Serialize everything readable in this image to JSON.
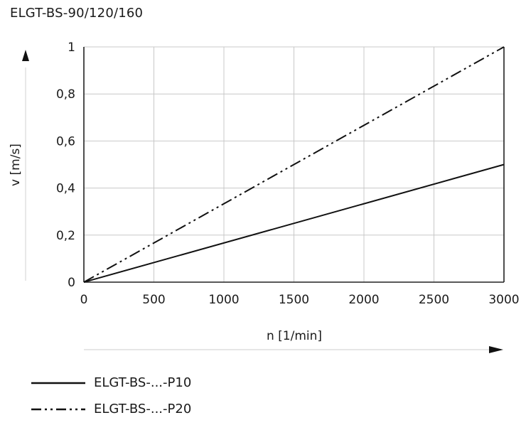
{
  "chart_data": {
    "type": "line",
    "title": "ELGT-BS-90/120/160",
    "xlabel": "n [1/min]",
    "ylabel": "v [m/s]",
    "xlim": [
      0,
      3000
    ],
    "ylim": [
      0,
      1
    ],
    "x_ticks": [
      "0",
      "500",
      "1000",
      "1500",
      "2000",
      "2500",
      "3000"
    ],
    "y_ticks": [
      "0",
      "0,2",
      "0,4",
      "0,6",
      "0,8",
      "1"
    ],
    "grid": true,
    "series": [
      {
        "name": "ELGT-BS-...-P10",
        "style": "solid",
        "x": [
          0,
          3000
        ],
        "y": [
          0,
          0.5
        ]
      },
      {
        "name": "ELGT-BS-...-P20",
        "style": "dashdotdot",
        "x": [
          0,
          3000
        ],
        "y": [
          0,
          1.0
        ]
      }
    ],
    "legend_placement": "bottom-left"
  }
}
